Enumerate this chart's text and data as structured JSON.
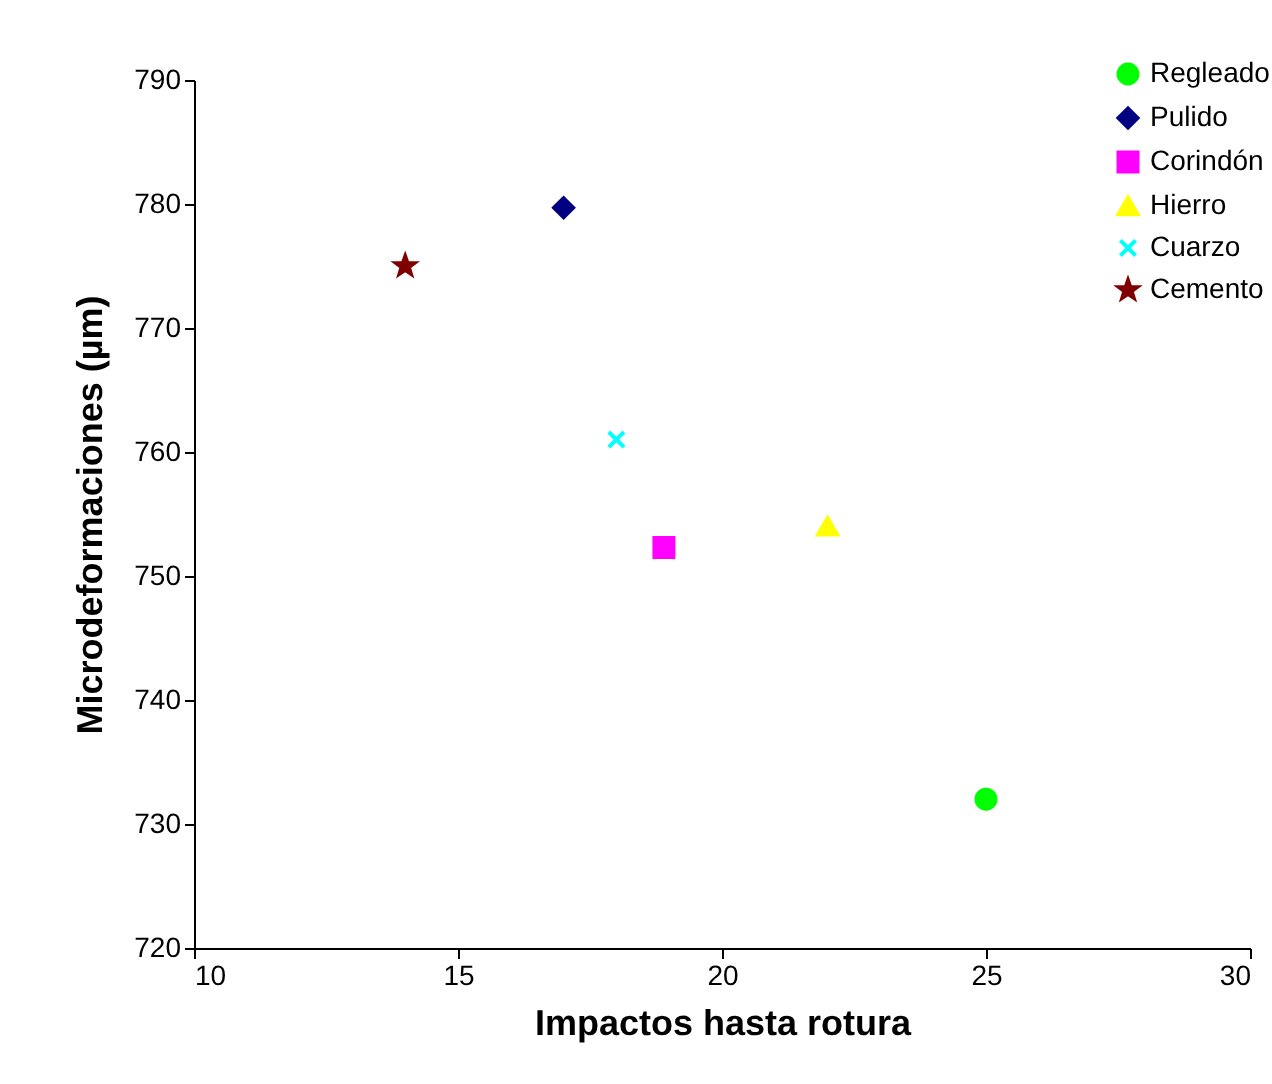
{
  "chart_data": {
    "type": "scatter",
    "xlabel": "Impactos hasta rotura",
    "ylabel": "Microdeformaciones (µm)",
    "xlim": [
      10,
      30
    ],
    "xticks": [
      10,
      15,
      20,
      25,
      30
    ],
    "ylim": [
      720,
      790
    ],
    "yticks": [
      720,
      730,
      740,
      750,
      760,
      770,
      780,
      790
    ],
    "grid": false,
    "legend": "top right",
    "series": [
      {
        "name": "Regleado",
        "color": "#00ff00",
        "marker": "circle",
        "x": [
          25
        ],
        "values": [
          732
        ]
      },
      {
        "name": "Pulido",
        "color": "#000080",
        "marker": "diamond",
        "x": [
          17
        ],
        "values": [
          779.7
        ]
      },
      {
        "name": "Corindón",
        "color": "#ff00ff",
        "marker": "square",
        "x": [
          18.9
        ],
        "values": [
          752.3
        ]
      },
      {
        "name": "Hierro",
        "color": "#ffff00",
        "marker": "triangle",
        "x": [
          22
        ],
        "values": [
          754
        ]
      },
      {
        "name": "Cuarzo",
        "color": "#00ffff",
        "marker": "cross",
        "x": [
          18
        ],
        "values": [
          761
        ]
      },
      {
        "name": "Cemento",
        "color": "#800000",
        "marker": "star",
        "x": [
          14
        ],
        "values": [
          775
        ]
      }
    ]
  }
}
